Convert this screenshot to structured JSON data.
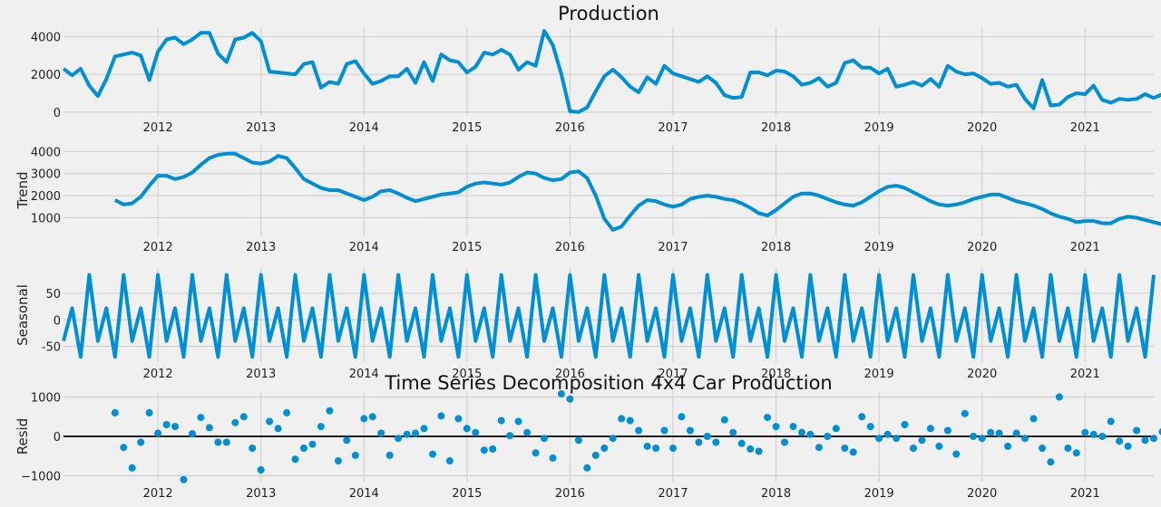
{
  "figure": {
    "suptitle": "Time Series Decomposition 4x4 Car Production",
    "colors": {
      "line": "#008fd5",
      "grid": "#cbcbcb",
      "background": "#f0f0f0",
      "zero_line": "#000000"
    }
  },
  "chart_data": [
    {
      "type": "line",
      "title": "Production",
      "ylabel": "",
      "ylim": [
        -200,
        4500
      ],
      "yticks": [
        "0",
        "2000",
        "4000"
      ],
      "xticks": [
        "2012",
        "2013",
        "2014",
        "2015",
        "2016",
        "2017",
        "2018",
        "2019",
        "2020",
        "2021"
      ],
      "x_start": "2011-02",
      "x_end": "2021-09",
      "frequency": "monthly",
      "series": [
        {
          "values": [
            2300,
            1950,
            2300,
            1400,
            850,
            1750,
            2950,
            3050,
            3150,
            3000,
            1700,
            3200,
            3850,
            3950,
            3600,
            3850,
            4200,
            4200,
            3100,
            2650,
            3850,
            3950,
            4200,
            3750,
            2150,
            2100,
            2050,
            2000,
            2550,
            2650,
            1300,
            1600,
            1500,
            2550,
            2700,
            2050,
            1500,
            1650,
            1900,
            1900,
            2300,
            1550,
            2650,
            1650,
            3050,
            2750,
            2650,
            2100,
            2400,
            3150,
            3050,
            3300,
            3050,
            2250,
            2650,
            2450,
            4300,
            3550,
            2000,
            50,
            0,
            250,
            1100,
            1900,
            2250,
            1850,
            1350,
            1050,
            1850,
            1500,
            2450,
            2050,
            1900,
            1750,
            1600,
            1900,
            1550,
            900,
            750,
            800,
            2100,
            2100,
            1950,
            2200,
            2150,
            1900,
            1450,
            1550,
            1800,
            1350,
            1550,
            2600,
            2750,
            2350,
            2350,
            2050,
            2300,
            1350,
            1450,
            1600,
            1400,
            1750,
            1350,
            2450,
            2150,
            2000,
            2050,
            1800,
            1500,
            1550,
            1350,
            1450,
            700,
            200,
            1700,
            350,
            400,
            800,
            1000,
            950,
            1400,
            650,
            500,
            700,
            650,
            700,
            950,
            750,
            950,
            750
          ]
        }
      ]
    },
    {
      "type": "line",
      "title": "",
      "ylabel": "Trend",
      "ylim": [
        200,
        4300
      ],
      "yticks": [
        "1000",
        "2000",
        "3000",
        "4000"
      ],
      "xticks": [
        "2012",
        "2013",
        "2014",
        "2015",
        "2016",
        "2017",
        "2018",
        "2019",
        "2020",
        "2021"
      ],
      "x_start": "2011-02",
      "x_end": "2021-09",
      "frequency": "monthly",
      "series": [
        {
          "values": [
            null,
            null,
            null,
            null,
            null,
            null,
            1800,
            1600,
            1650,
            1950,
            2450,
            2900,
            2900,
            2750,
            2850,
            3050,
            3400,
            3700,
            3850,
            3900,
            3900,
            3700,
            3500,
            3450,
            3550,
            3800,
            3700,
            3250,
            2750,
            2550,
            2350,
            2250,
            2250,
            2100,
            1950,
            1800,
            1950,
            2200,
            2250,
            2100,
            1900,
            1750,
            1850,
            1950,
            2050,
            2100,
            2150,
            2400,
            2550,
            2600,
            2550,
            2500,
            2600,
            2850,
            3050,
            3000,
            2800,
            2700,
            2750,
            3050,
            3100,
            2800,
            2000,
            950,
            450,
            600,
            1100,
            1550,
            1800,
            1750,
            1600,
            1500,
            1600,
            1850,
            1950,
            2000,
            1950,
            1850,
            1800,
            1650,
            1450,
            1200,
            1100,
            1350,
            1650,
            1950,
            2100,
            2100,
            2000,
            1850,
            1700,
            1600,
            1550,
            1700,
            1950,
            2200,
            2400,
            2450,
            2350,
            2150,
            1950,
            1750,
            1600,
            1550,
            1600,
            1700,
            1850,
            1950,
            2050,
            2050,
            1900,
            1750,
            1650,
            1550,
            1400,
            1200,
            1050,
            950,
            800,
            850,
            850,
            750,
            750,
            950,
            1050,
            1000,
            900,
            800,
            700,
            650,
            700,
            750,
            800,
            850,
            900,
            null,
            null,
            null,
            null,
            null,
            null
          ]
        }
      ]
    },
    {
      "type": "line",
      "title": "",
      "ylabel": "Seasonal",
      "ylim": [
        -80,
        98
      ],
      "yticks": [
        "-50",
        "0",
        "50"
      ],
      "xticks": [
        "2012",
        "2013",
        "2014",
        "2015",
        "2016",
        "2017",
        "2018",
        "2019",
        "2020",
        "2021"
      ],
      "x_start": "2011-02",
      "x_end": "2021-09",
      "frequency": "monthly",
      "period_pattern": [
        -40,
        22,
        -70,
        85,
        -40,
        22,
        -70,
        85,
        -40,
        22,
        -70,
        85
      ],
      "note_hidden": ""
    },
    {
      "type": "scatter",
      "title": "Time Series Decomposition 4x4 Car Production",
      "ylabel": "Resid",
      "ylim": [
        -1150,
        1150
      ],
      "yticks": [
        "−1000",
        "0",
        "1000"
      ],
      "xticks": [
        "2012",
        "2013",
        "2014",
        "2015",
        "2016",
        "2017",
        "2018",
        "2019",
        "2020",
        "2021"
      ],
      "x_start": "2011-02",
      "x_end": "2021-09",
      "frequency": "monthly",
      "series": [
        {
          "values": [
            null,
            null,
            null,
            null,
            null,
            null,
            600,
            -280,
            -800,
            -150,
            600,
            80,
            300,
            250,
            -1100,
            70,
            480,
            220,
            -150,
            -150,
            350,
            500,
            -300,
            -850,
            380,
            200,
            600,
            -580,
            -300,
            -200,
            250,
            650,
            -620,
            -100,
            -480,
            450,
            500,
            80,
            -480,
            -50,
            50,
            80,
            200,
            -450,
            520,
            -620,
            450,
            200,
            100,
            -350,
            -320,
            400,
            20,
            380,
            100,
            -420,
            -50,
            -550,
            1080,
            950,
            -100,
            -800,
            -480,
            -300,
            -50,
            450,
            400,
            150,
            -250,
            -300,
            150,
            -300,
            500,
            150,
            -150,
            0,
            -150,
            420,
            100,
            -180,
            -320,
            -380,
            480,
            250,
            -150,
            250,
            100,
            50,
            -280,
            0,
            200,
            -300,
            -400,
            500,
            250,
            -50,
            50,
            -50,
            300,
            -300,
            -100,
            200,
            -250,
            150,
            -450,
            580,
            0,
            -50,
            100,
            80,
            -250,
            80,
            -50,
            450,
            -300,
            -650,
            1000,
            -300,
            -420,
            100,
            50,
            0,
            380,
            -120,
            -250,
            150,
            -100,
            -50,
            120,
            -30,
            null,
            null,
            null,
            null,
            null,
            null
          ]
        }
      ]
    }
  ]
}
